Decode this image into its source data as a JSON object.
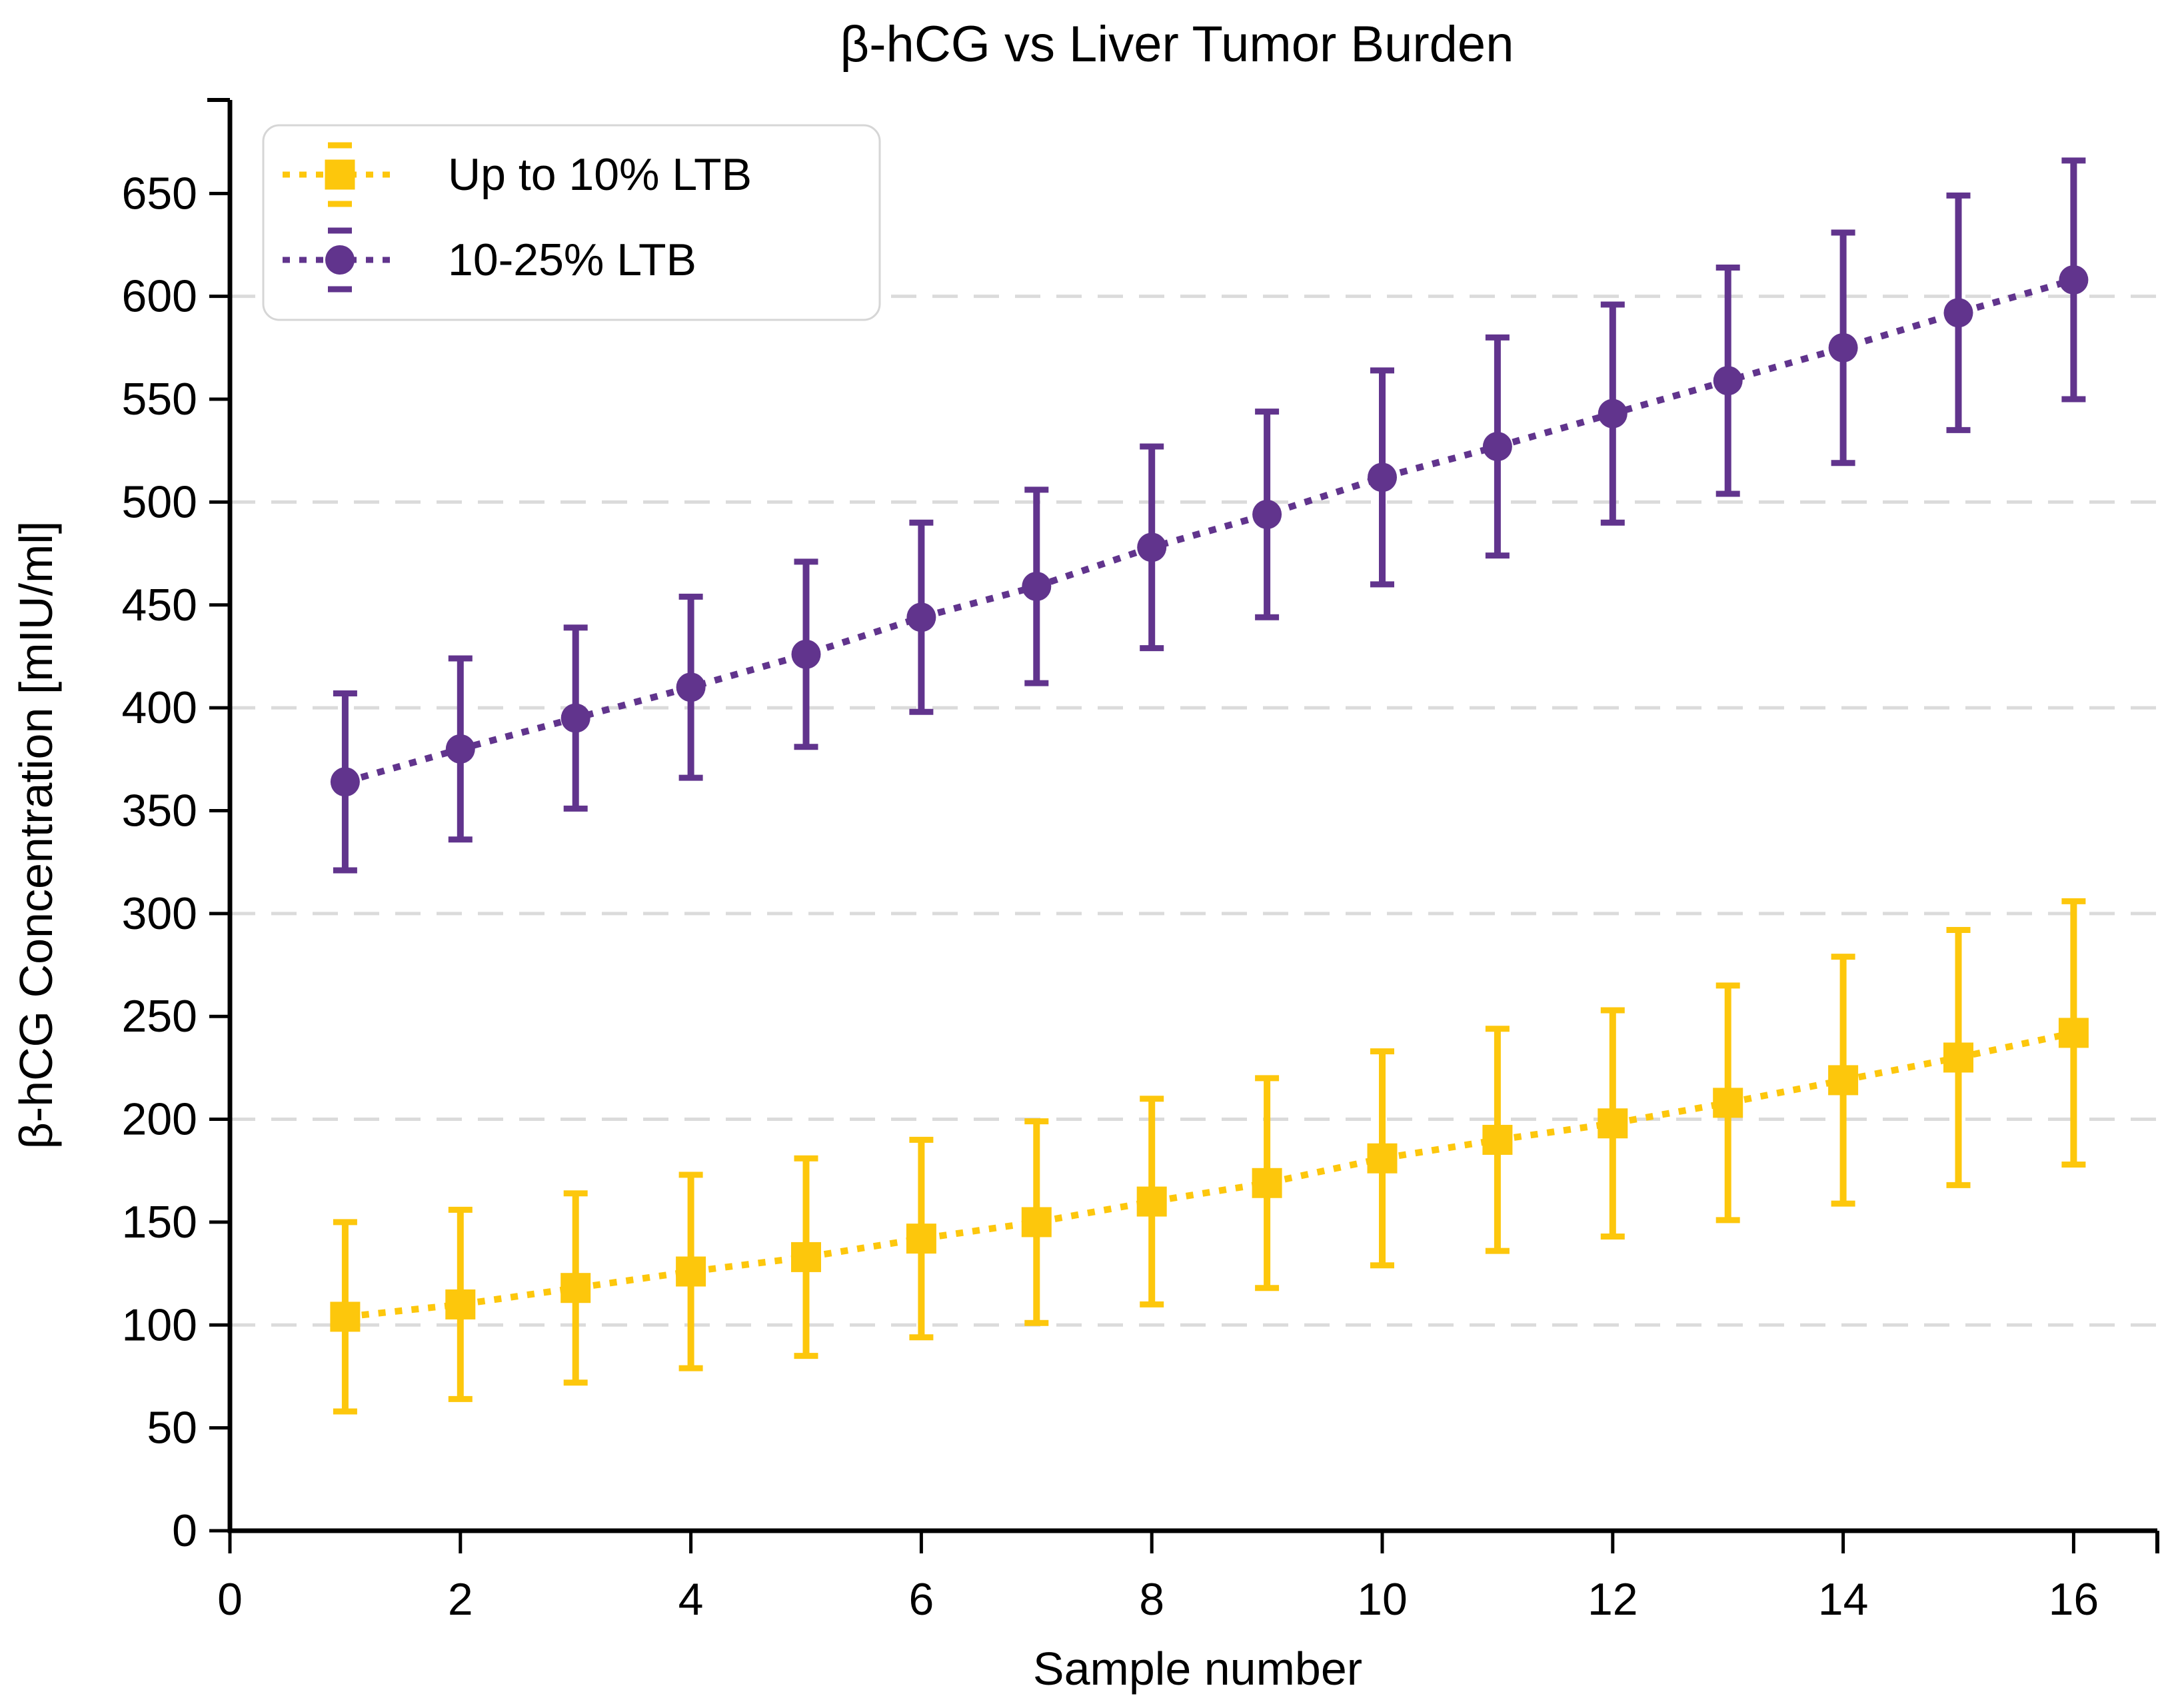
{
  "chart_data": {
    "type": "line",
    "subtype": "errorbar-dotted-line",
    "title": "β-hCG vs Liver Tumor Burden",
    "xlabel": "Sample number",
    "ylabel": "β-hCG Concentration [mIU/ml]",
    "xlim": [
      0,
      16.8
    ],
    "ylim": [
      0,
      695
    ],
    "x_ticks": [
      0,
      2,
      4,
      6,
      8,
      10,
      12,
      14,
      16
    ],
    "y_ticks": [
      0,
      50,
      100,
      150,
      200,
      250,
      300,
      350,
      400,
      450,
      500,
      550,
      600,
      650
    ],
    "gridlines_y": [
      100,
      200,
      300,
      400,
      500,
      600
    ],
    "grid_style": "dashed-horizontal",
    "legend_position": "upper-left",
    "x": [
      1,
      2,
      3,
      4,
      5,
      6,
      7,
      8,
      9,
      10,
      11,
      12,
      13,
      14,
      15,
      16
    ],
    "series": [
      {
        "name": "Up to 10% LTB",
        "marker": "square",
        "line_style": "dotted",
        "color": "#FDC70C",
        "values": [
          104,
          110,
          118,
          126,
          133,
          142,
          150,
          160,
          169,
          181,
          190,
          198,
          208,
          219,
          230,
          242
        ],
        "errors": [
          46,
          46,
          46,
          47,
          48,
          48,
          49,
          50,
          51,
          52,
          54,
          55,
          57,
          60,
          62,
          64
        ]
      },
      {
        "name": "10-25% LTB",
        "marker": "circle",
        "line_style": "dotted",
        "color": "#61348D",
        "values": [
          364,
          380,
          395,
          410,
          426,
          444,
          459,
          478,
          494,
          512,
          527,
          543,
          559,
          575,
          592,
          608
        ],
        "errors": [
          43,
          44,
          44,
          44,
          45,
          46,
          47,
          49,
          50,
          52,
          53,
          53,
          55,
          56,
          57,
          58
        ]
      }
    ],
    "colors": {
      "grid": "#DBDBDB",
      "axis": "#000000",
      "text": "#000000",
      "legend_border": "#D6D6D6",
      "background": "#FFFFFF"
    }
  }
}
